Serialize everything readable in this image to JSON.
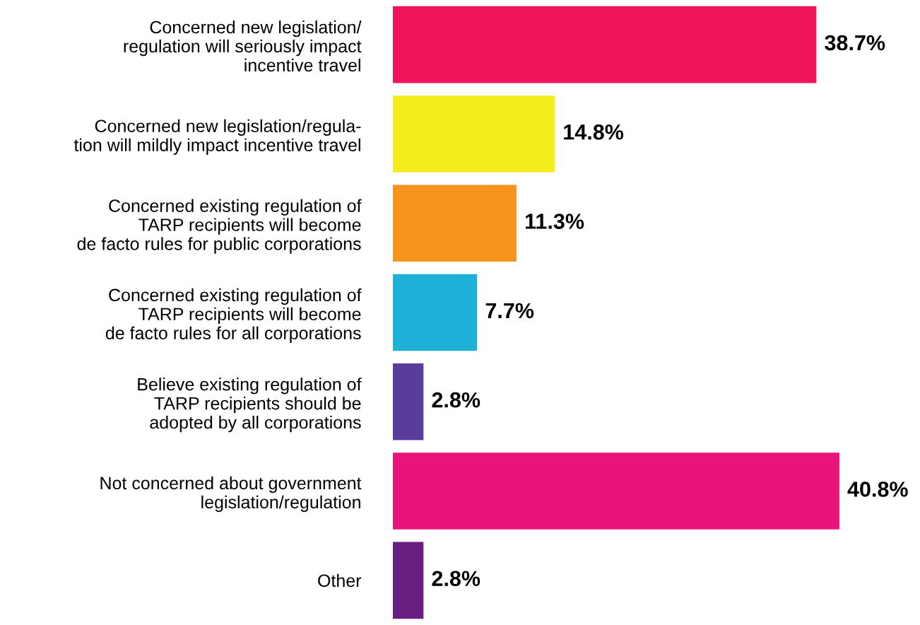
{
  "chart_data": {
    "type": "bar",
    "orientation": "horizontal",
    "categories": [
      "Concerned new legislation/\nregulation will seriously impact\nincentive travel",
      "Concerned new legislation/regula-\ntion will mildly impact incentive travel",
      "Concerned existing regulation of\nTARP recipients will become\nde facto rules for public corporations",
      "Concerned existing regulation of\nTARP recipients will become\nde facto rules for all corporations",
      "Believe existing regulation of\nTARP recipients should be\nadopted by all corporations",
      "Not concerned about government\nlegislation/regulation",
      "Other"
    ],
    "values": [
      38.7,
      14.8,
      11.3,
      7.7,
      2.8,
      40.8,
      2.8
    ],
    "value_labels": [
      "38.7%",
      "14.8%",
      "11.3%",
      "7.7%",
      "2.8%",
      "40.8%",
      "2.8%"
    ],
    "colors": [
      "#f0145a",
      "#f5ec1e",
      "#f7941d",
      "#1fb0d8",
      "#5a3c9c",
      "#e8147c",
      "#6a1e82"
    ],
    "grid": false,
    "legend": false
  }
}
